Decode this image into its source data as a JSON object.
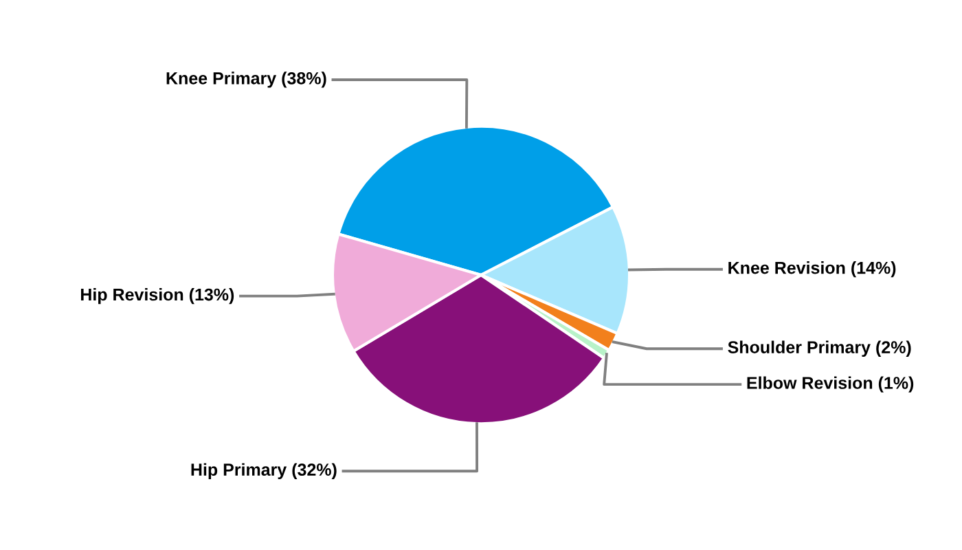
{
  "chart_data": {
    "type": "pie",
    "categories": [
      "Knee Primary",
      "Knee Revision",
      "Shoulder Primary",
      "Elbow Revision",
      "Hip Primary",
      "Hip Revision"
    ],
    "values": [
      38,
      14,
      2,
      1,
      32,
      13
    ],
    "value_labels": [
      "(38%)",
      "(14%)",
      "(2%)",
      "(1%)",
      "(32%)",
      "(13%)"
    ],
    "colors": [
      "#009fe8",
      "#a8e6fc",
      "#f2801c",
      "#b8f2c8",
      "#871079",
      "#f0abd9"
    ],
    "legend": false
  }
}
